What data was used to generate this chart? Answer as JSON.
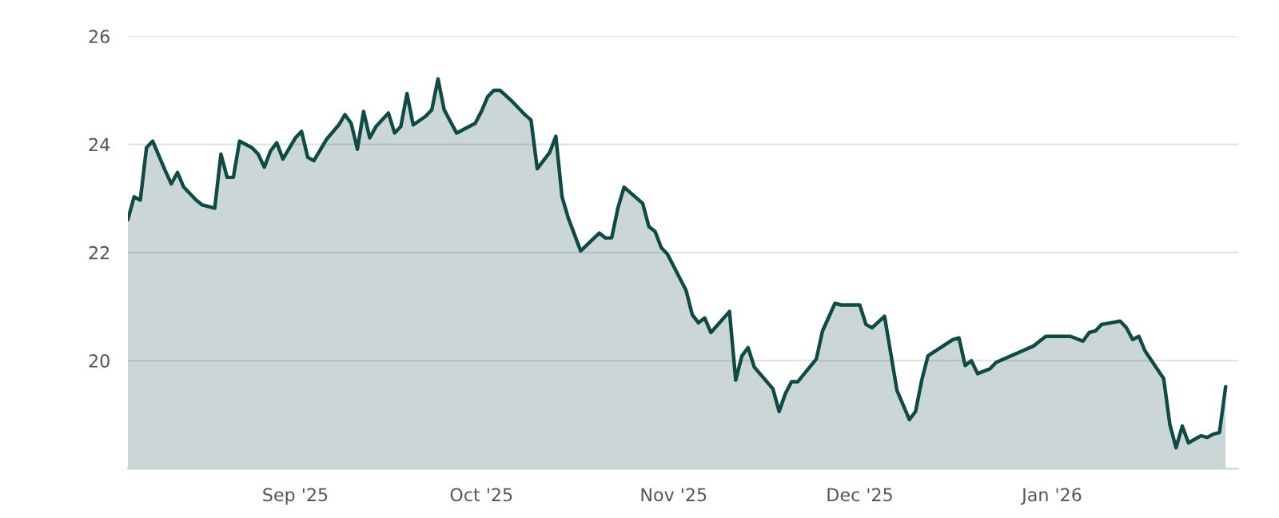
{
  "chart_data": {
    "type": "area",
    "x": [
      "2025-08-05",
      "2025-08-06",
      "2025-08-07",
      "2025-08-08",
      "2025-08-09",
      "2025-08-10",
      "2025-08-11",
      "2025-08-12",
      "2025-08-13",
      "2025-08-14",
      "2025-08-16",
      "2025-08-17",
      "2025-08-19",
      "2025-08-20",
      "2025-08-21",
      "2025-08-22",
      "2025-08-23",
      "2025-08-25",
      "2025-08-26",
      "2025-08-27",
      "2025-08-28",
      "2025-08-29",
      "2025-08-30",
      "2025-09-01",
      "2025-09-02",
      "2025-09-03",
      "2025-09-04",
      "2025-09-06",
      "2025-09-08",
      "2025-09-09",
      "2025-09-10",
      "2025-09-11",
      "2025-09-12",
      "2025-09-13",
      "2025-09-14",
      "2025-09-16",
      "2025-09-17",
      "2025-09-18",
      "2025-09-19",
      "2025-09-20",
      "2025-09-22",
      "2025-09-23",
      "2025-09-24",
      "2025-09-25",
      "2025-09-27",
      "2025-09-30",
      "2025-10-01",
      "2025-10-02",
      "2025-10-03",
      "2025-10-04",
      "2025-10-06",
      "2025-10-07",
      "2025-10-08",
      "2025-10-09",
      "2025-10-10",
      "2025-10-12",
      "2025-10-13",
      "2025-10-14",
      "2025-10-15",
      "2025-10-17",
      "2025-10-20",
      "2025-10-21",
      "2025-10-22",
      "2025-10-23",
      "2025-10-24",
      "2025-10-27",
      "2025-10-28",
      "2025-10-29",
      "2025-10-30",
      "2025-10-31",
      "2025-11-03",
      "2025-11-04",
      "2025-11-05",
      "2025-11-06",
      "2025-11-07",
      "2025-11-10",
      "2025-11-11",
      "2025-11-12",
      "2025-11-13",
      "2025-11-14",
      "2025-11-17",
      "2025-11-18",
      "2025-11-19",
      "2025-11-20",
      "2025-11-21",
      "2025-11-24",
      "2025-11-25",
      "2025-11-27",
      "2025-11-28",
      "2025-11-30",
      "2025-12-01",
      "2025-12-02",
      "2025-12-03",
      "2025-12-05",
      "2025-12-07",
      "2025-12-09",
      "2025-12-10",
      "2025-12-11",
      "2025-12-12",
      "2025-12-16",
      "2025-12-17",
      "2025-12-18",
      "2025-12-19",
      "2025-12-20",
      "2025-12-22",
      "2025-12-23",
      "2025-12-29",
      "2025-12-30",
      "2025-12-31",
      "2026-01-04",
      "2026-01-06",
      "2026-01-07",
      "2026-01-08",
      "2026-01-09",
      "2026-01-12",
      "2026-01-13",
      "2026-01-14",
      "2026-01-15",
      "2026-01-16",
      "2026-01-19",
      "2026-01-20",
      "2026-01-21",
      "2026-01-22",
      "2026-01-23",
      "2026-01-25",
      "2026-01-26",
      "2026-01-27",
      "2026-01-28",
      "2026-01-29"
    ],
    "series": [
      {
        "color": "#0f4a45",
        "values": [
          22.61,
          23.03,
          22.97,
          23.94,
          24.06,
          23.79,
          23.52,
          23.27,
          23.48,
          23.21,
          22.97,
          22.88,
          22.82,
          23.82,
          23.39,
          23.39,
          24.06,
          23.94,
          23.82,
          23.58,
          23.88,
          24.03,
          23.73,
          24.12,
          24.24,
          23.76,
          23.7,
          24.09,
          24.36,
          24.55,
          24.39,
          23.91,
          24.61,
          24.12,
          24.33,
          24.58,
          24.21,
          24.33,
          24.94,
          24.36,
          24.52,
          24.64,
          25.21,
          24.64,
          24.21,
          24.39,
          24.61,
          24.88,
          25.0,
          25.0,
          24.79,
          24.67,
          24.55,
          24.45,
          23.55,
          23.85,
          24.15,
          23.03,
          22.64,
          22.03,
          22.36,
          22.27,
          22.27,
          22.82,
          23.21,
          22.91,
          22.48,
          22.39,
          22.09,
          21.97,
          21.3,
          20.85,
          20.7,
          20.79,
          20.52,
          20.91,
          19.64,
          20.09,
          20.24,
          19.88,
          19.48,
          19.06,
          19.39,
          19.61,
          19.61,
          20.03,
          20.55,
          21.06,
          21.03,
          21.03,
          21.03,
          20.67,
          20.61,
          20.82,
          19.45,
          18.91,
          19.06,
          19.64,
          20.09,
          20.39,
          20.42,
          19.91,
          20.0,
          19.76,
          19.85,
          19.97,
          20.27,
          20.36,
          20.45,
          20.45,
          20.36,
          20.52,
          20.55,
          20.67,
          20.73,
          20.61,
          20.39,
          20.45,
          20.18,
          19.67,
          18.82,
          18.39,
          18.79,
          18.48,
          18.61,
          18.58,
          18.64,
          18.67,
          19.52
        ]
      }
    ],
    "xlim": [
      "2025-08-05",
      "2026-01-31"
    ],
    "xticks": [
      {
        "value": "2025-09-01",
        "label": "Sep '25"
      },
      {
        "value": "2025-10-01",
        "label": "Oct '25"
      },
      {
        "value": "2025-11-01",
        "label": "Nov '25"
      },
      {
        "value": "2025-12-01",
        "label": "Dec '25"
      },
      {
        "value": "2026-01-01",
        "label": "Jan '26"
      }
    ],
    "ylim": [
      18,
      26
    ],
    "yticks": [
      20,
      22,
      24,
      26
    ],
    "grid": "y"
  }
}
